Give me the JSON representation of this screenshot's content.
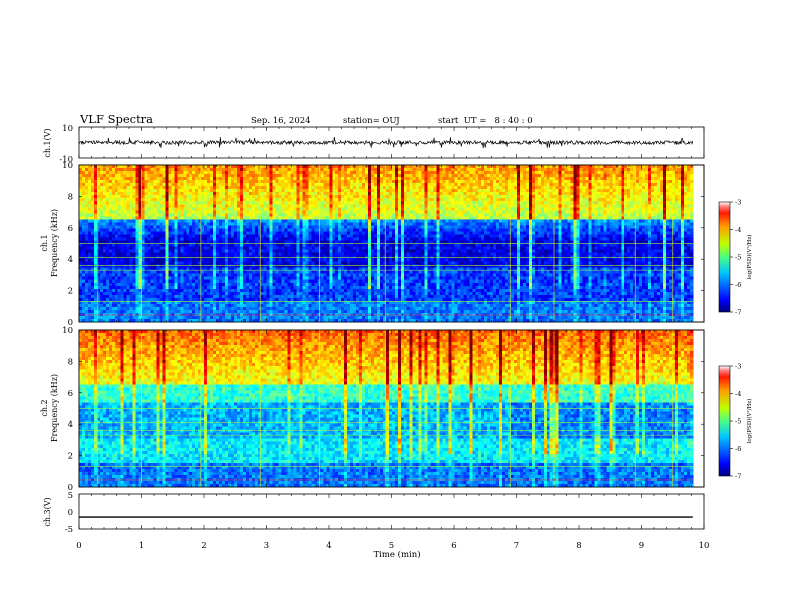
{
  "header": {
    "title": "VLF Spectra",
    "date": "Sep. 16, 2024",
    "station": "station= OUJ",
    "start": "start  UT =   8 : 40 : 0"
  },
  "chart_data": [
    {
      "type": "line",
      "panel": "ch.1 waveform",
      "ylabel": "ch.1(V)",
      "ylim": [
        -10,
        10
      ],
      "yticks": [
        "10",
        "-10"
      ],
      "xlim": [
        0,
        10
      ],
      "series": [
        {
          "level": 0,
          "noise_band": [
            -1.2,
            1.2
          ],
          "spike_min": -3.5,
          "spike_max": 3.5
        }
      ]
    },
    {
      "type": "heatmap",
      "panel": "ch.1 spectrogram",
      "ylabel": "ch.1 Frequency (kHz)",
      "ylim": [
        0,
        10
      ],
      "yticks": [
        "0",
        "2",
        "4",
        "6",
        "8",
        "10"
      ],
      "xlim": [
        0,
        9.82
      ],
      "colorbar": {
        "label": "log(PSD)(V²/Hz)",
        "range": [
          -7,
          -3
        ],
        "ticks": [
          "-3",
          "-4",
          "-5",
          "-6",
          "-7"
        ]
      },
      "description": "low power (blue/black) below ~6 kHz, high power (green/yellow/red) above ~6 kHz"
    },
    {
      "type": "heatmap",
      "panel": "ch.2 spectrogram",
      "ylabel": "ch.2 Frequency (kHz)",
      "ylim": [
        0,
        10
      ],
      "yticks": [
        "0",
        "2",
        "4",
        "6",
        "8",
        "10"
      ],
      "xlim": [
        0,
        9.82
      ],
      "colorbar": {
        "label": "log(PSD)(V²/Hz)",
        "range": [
          -7,
          -3
        ],
        "ticks": [
          "-3",
          "-4",
          "-5",
          "-6",
          "-7"
        ]
      },
      "description": "cyan/blue mid band, green/yellow above ~6 kHz"
    },
    {
      "type": "line",
      "panel": "ch.3 waveform",
      "ylabel": "ch.3(V)",
      "ylim": [
        -5,
        5
      ],
      "yticks": [
        "5",
        "0",
        "-5"
      ],
      "xlim": [
        0,
        10
      ],
      "series": [
        {
          "level": -1.6
        }
      ]
    }
  ],
  "xaxis": {
    "label": "Time (min)",
    "ticks": [
      "0",
      "1",
      "2",
      "3",
      "4",
      "5",
      "6",
      "7",
      "8",
      "9",
      "10"
    ]
  }
}
